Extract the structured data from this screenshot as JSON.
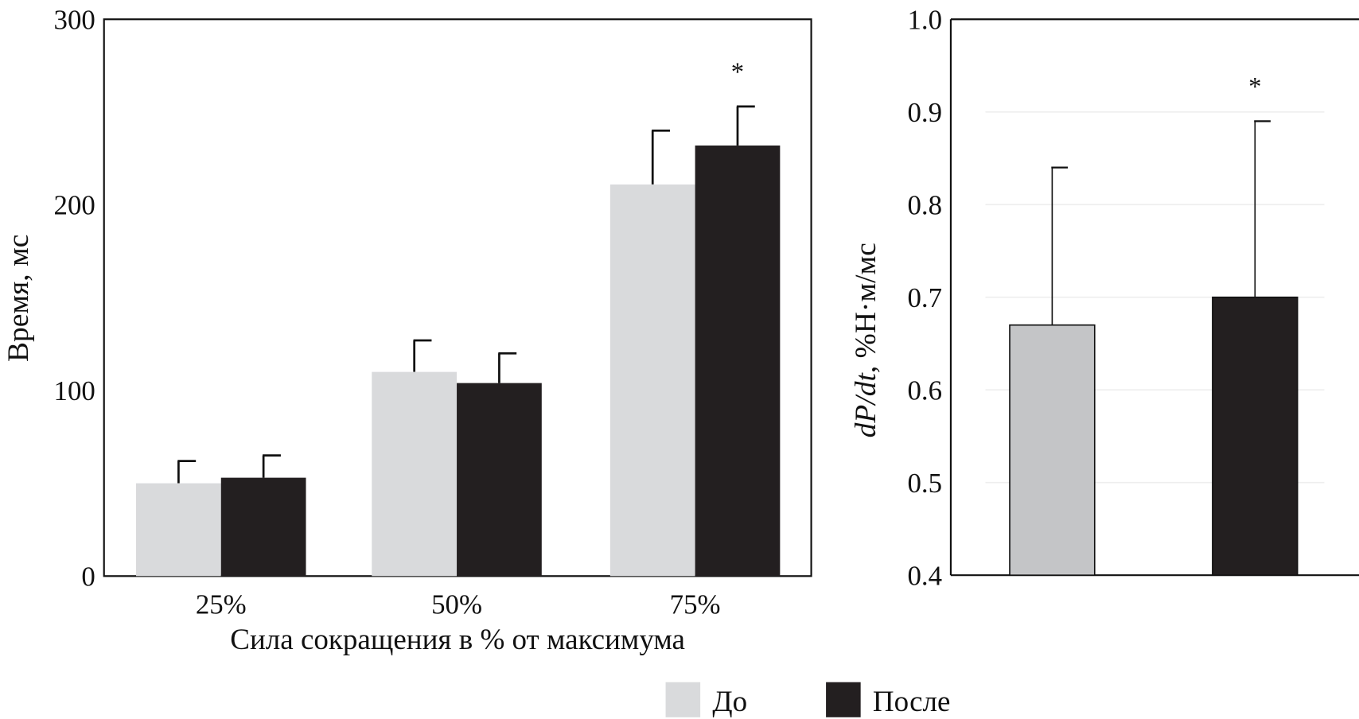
{
  "chart_data": [
    {
      "type": "bar",
      "ylabel": "Время, мс",
      "xlabel": "Сила сокращения в % от максимума",
      "categories": [
        "25%",
        "50%",
        "75%"
      ],
      "ylim": [
        0,
        300
      ],
      "yticks": [
        0,
        100,
        200,
        300
      ],
      "grid": false,
      "series": [
        {
          "name": "До",
          "color": "#d9dadc",
          "values": [
            50,
            110,
            211
          ],
          "error_upper": [
            62,
            127,
            240
          ]
        },
        {
          "name": "После",
          "color": "#231f20",
          "values": [
            53,
            104,
            232
          ],
          "error_upper": [
            65,
            120,
            253
          ]
        }
      ],
      "annotations": [
        {
          "category": "75%",
          "series": "После",
          "text": "*"
        }
      ]
    },
    {
      "type": "bar",
      "ylabel_parts": [
        "dP/dt",
        ", %Н·м/мс"
      ],
      "categories": [
        "До",
        "После"
      ],
      "ylim": [
        0.4,
        1.0
      ],
      "yticks": [
        "0.4",
        "0.5",
        "0.6",
        "0.7",
        "0.8",
        "0.9",
        "1.0"
      ],
      "grid": true,
      "values": [
        0.67,
        0.7
      ],
      "error_upper": [
        0.84,
        0.89
      ],
      "colors": [
        "#c4c5c7",
        "#231f20"
      ],
      "annotations": [
        {
          "category": "После",
          "text": "*"
        }
      ]
    }
  ],
  "legend": {
    "position": "bottom-right",
    "items": [
      {
        "label": "До",
        "color": "#d9dadc"
      },
      {
        "label": "После",
        "color": "#231f20"
      }
    ]
  }
}
